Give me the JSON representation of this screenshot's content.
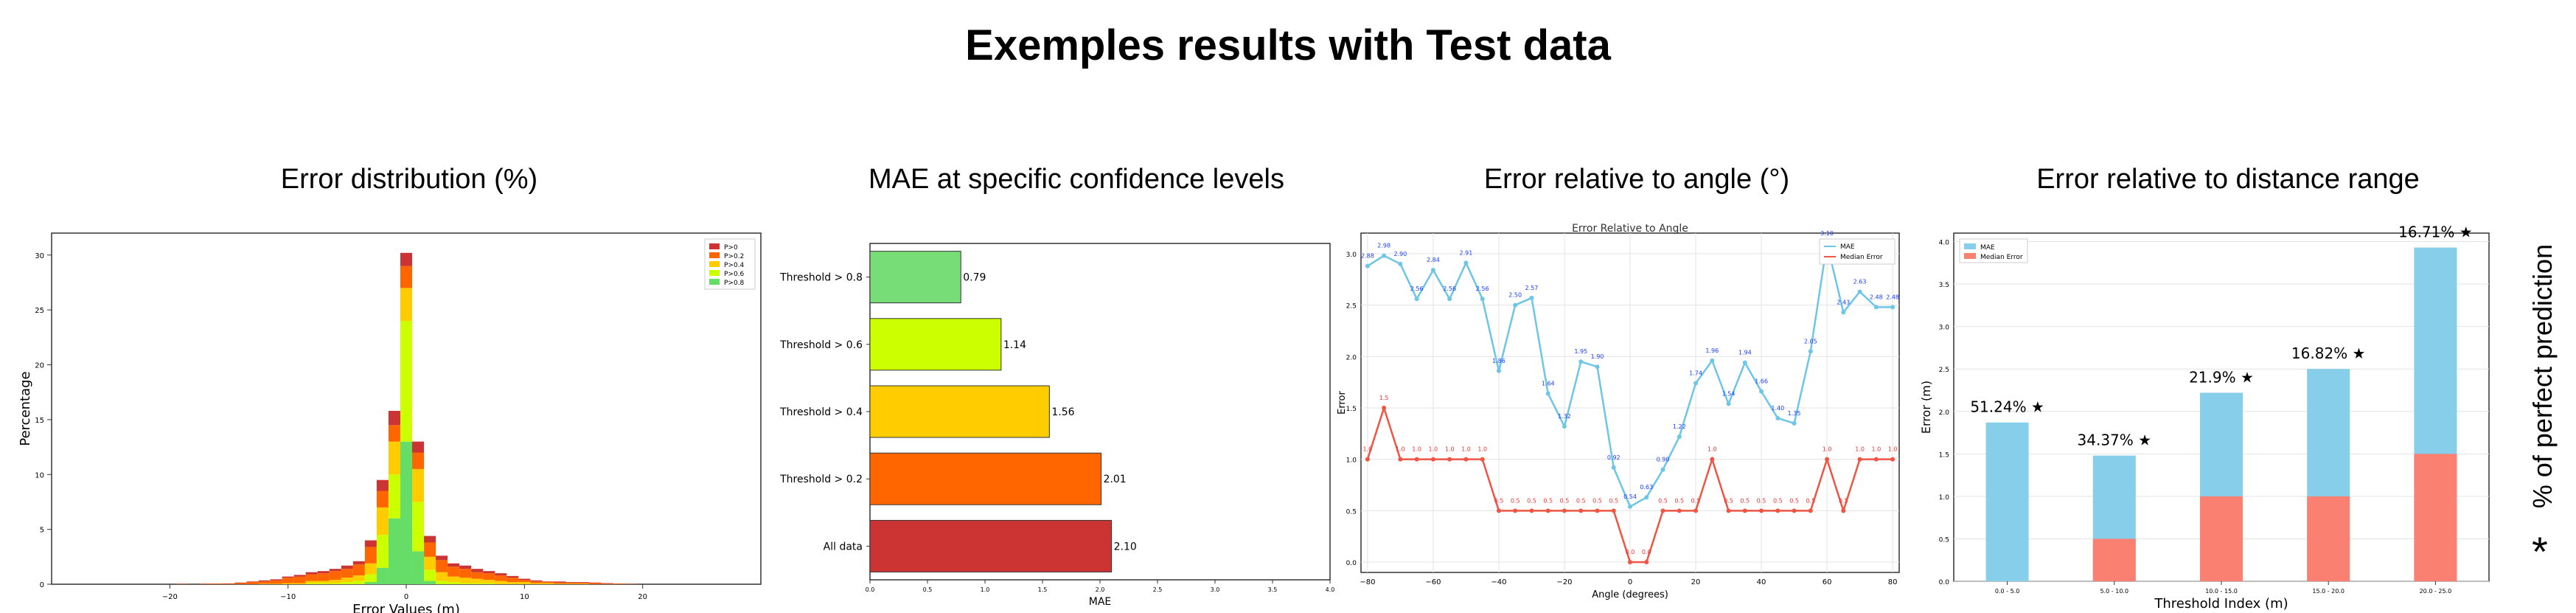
{
  "page": {
    "title": "Exemples results with Test data"
  },
  "panels": [
    {
      "title": "Error distribution (%)"
    },
    {
      "title": "MAE at specific confidence levels"
    },
    {
      "title": "Error relative to angle (°)"
    },
    {
      "title": "Error relative to distance range"
    }
  ],
  "side_label": {
    "text": "% of perfect prediction",
    "star": "*"
  },
  "chart_data": [
    {
      "type": "bar",
      "stacked": true,
      "xlabel": "Error Values (m)",
      "ylabel": "Percentage",
      "xlim": [
        -30,
        30
      ],
      "ylim": [
        0,
        32
      ],
      "xticks": [
        -20,
        -10,
        0,
        10,
        20
      ],
      "yticks": [
        0,
        5,
        10,
        15,
        20,
        25,
        30
      ],
      "bin_width": 1,
      "legend_position": "top-right",
      "bins": [
        -19,
        -17,
        -16,
        -15,
        -14,
        -13,
        -12,
        -11,
        -10,
        -9,
        -8,
        -7,
        -6,
        -5,
        -4,
        -3,
        -2,
        -1,
        0,
        1,
        2,
        3,
        4,
        5,
        6,
        7,
        8,
        9,
        10,
        11,
        12,
        13,
        14,
        15,
        16,
        17,
        18,
        19
      ],
      "series": [
        {
          "name": "P>0.8",
          "color": "#66dd66",
          "values": [
            0,
            0,
            0,
            0,
            0,
            0,
            0,
            0,
            0,
            0,
            0,
            0,
            0,
            0,
            0,
            0.2,
            1.5,
            6,
            13,
            3,
            0.3,
            0,
            0,
            0,
            0,
            0,
            0,
            0,
            0,
            0,
            0,
            0,
            0,
            0,
            0,
            0,
            0,
            0
          ]
        },
        {
          "name": "P>0.6",
          "color": "#ccff00",
          "values": [
            0,
            0,
            0,
            0,
            0,
            0,
            0,
            0,
            0,
            0,
            0.1,
            0.1,
            0.1,
            0.2,
            0.3,
            0.7,
            3,
            4,
            11,
            4.5,
            1,
            0.3,
            0.2,
            0.1,
            0.1,
            0.1,
            0,
            0,
            0,
            0,
            0,
            0,
            0,
            0,
            0,
            0,
            0,
            0
          ]
        },
        {
          "name": "P>0.4",
          "color": "#ffcc00",
          "values": [
            0,
            0,
            0,
            0,
            0,
            0,
            0.05,
            0.05,
            0.1,
            0.1,
            0.2,
            0.2,
            0.3,
            0.4,
            0.5,
            1,
            2.5,
            3,
            3,
            3,
            1.2,
            0.8,
            0.5,
            0.5,
            0.4,
            0.3,
            0.3,
            0.2,
            0.2,
            0.1,
            0.1,
            0.05,
            0.05,
            0.05,
            0,
            0,
            0,
            0
          ]
        },
        {
          "name": "P>0.2",
          "color": "#ff6600",
          "values": [
            0.02,
            0.03,
            0.05,
            0.05,
            0.1,
            0.2,
            0.2,
            0.3,
            0.5,
            0.6,
            0.6,
            0.7,
            0.8,
            0.8,
            1,
            1.5,
            1.5,
            1.5,
            2,
            1.5,
            1.3,
            1.1,
            0.9,
            0.8,
            0.6,
            0.6,
            0.5,
            0.4,
            0.2,
            0.15,
            0.1,
            0.1,
            0.1,
            0.1,
            0.1,
            0.05,
            0.05,
            0.02
          ]
        },
        {
          "name": "P>0",
          "color": "#cc3333",
          "values": [
            0.02,
            0.02,
            0.02,
            0.03,
            0.05,
            0.05,
            0.1,
            0.1,
            0.1,
            0.15,
            0.2,
            0.2,
            0.2,
            0.3,
            0.3,
            0.6,
            1,
            1.3,
            1.2,
            1,
            0.6,
            0.4,
            0.3,
            0.3,
            0.3,
            0.2,
            0.2,
            0.15,
            0.1,
            0.1,
            0.05,
            0.1,
            0.05,
            0.05,
            0.05,
            0.05,
            0.02,
            0.02
          ]
        }
      ]
    },
    {
      "type": "bar",
      "orientation": "horizontal",
      "xlabel": "MAE",
      "xlim": [
        0,
        4
      ],
      "xticks": [
        "0.0",
        "0.5",
        "1.0",
        "1.5",
        "2.0",
        "2.5",
        "3.0",
        "3.5",
        "4.0"
      ],
      "categories": [
        "Threshold > 0.8",
        "Threshold > 0.6",
        "Threshold > 0.4",
        "Threshold > 0.2",
        "All data"
      ],
      "values": [
        0.79,
        1.14,
        1.56,
        2.01,
        2.1
      ],
      "value_labels": [
        "0.79",
        "1.14",
        "1.56",
        "2.01",
        "2.10"
      ],
      "colors": [
        "#77dd77",
        "#ccff00",
        "#ffcc00",
        "#ff6600",
        "#cc3333"
      ]
    },
    {
      "type": "line",
      "title": "Error Relative to Angle",
      "xlabel": "Angle (degrees)",
      "ylabel": "Error",
      "xlim": [
        -82,
        82
      ],
      "ylim": [
        -0.1,
        3.2
      ],
      "xticks": [
        -80,
        -60,
        -40,
        -20,
        0,
        20,
        40,
        60,
        80
      ],
      "yticks": [
        "0.0",
        "0.5",
        "1.0",
        "1.5",
        "2.0",
        "2.5",
        "3.0"
      ],
      "grid": true,
      "legend_position": "top-right",
      "x": [
        -80,
        -75,
        -70,
        -65,
        -60,
        -55,
        -50,
        -45,
        -40,
        -35,
        -30,
        -25,
        -20,
        -15,
        -10,
        -5,
        0,
        5,
        10,
        15,
        20,
        25,
        30,
        35,
        40,
        45,
        50,
        55,
        60,
        65,
        70,
        75,
        80
      ],
      "series": [
        {
          "name": "MAE",
          "color": "#6ec6e6",
          "values": [
            2.88,
            2.98,
            2.9,
            2.56,
            2.84,
            2.56,
            2.91,
            2.56,
            1.86,
            2.5,
            2.57,
            1.64,
            1.32,
            1.95,
            1.9,
            0.92,
            0.54,
            0.63,
            0.9,
            1.22,
            1.74,
            1.96,
            1.54,
            1.94,
            1.66,
            1.4,
            1.35,
            2.05,
            3.1,
            2.43,
            2.63,
            2.48,
            2.48
          ],
          "point_labels": [
            "2.88",
            "2.98",
            "2.90",
            "2.56",
            "2.84",
            "2.56",
            "2.91",
            "2.56",
            "1.86",
            "2.50",
            "2.57",
            "1.64",
            "1.32",
            "1.95",
            "1.90",
            "0.92",
            "0.54",
            "0.63",
            "0.90",
            "1.22",
            "1.74",
            "1.96",
            "1.54",
            "1.94",
            "1.66",
            "1.40",
            "1.35",
            "2.05",
            "3.10",
            "2.43",
            "2.63",
            "2.48",
            "2.48"
          ]
        },
        {
          "name": "Median Error",
          "color": "#ee5544",
          "values": [
            1.0,
            1.5,
            1.0,
            1.0,
            1.0,
            1.0,
            1.0,
            1.0,
            0.5,
            0.5,
            0.5,
            0.5,
            0.5,
            0.5,
            0.5,
            0.5,
            0.0,
            0.0,
            0.5,
            0.5,
            0.5,
            1.0,
            0.5,
            0.5,
            0.5,
            0.5,
            0.5,
            0.5,
            1.0,
            0.5,
            1.0,
            1.0,
            1.0
          ],
          "point_labels": [
            "1.0",
            "1.5",
            "1.0",
            "1.0",
            "1.0",
            "1.0",
            "1.0",
            "1.0",
            "0.5",
            "0.5",
            "0.5",
            "0.5",
            "0.5",
            "0.5",
            "0.5",
            "0.5",
            "0.0",
            "0.0",
            "0.5",
            "0.5",
            "0.5",
            "1.0",
            "0.5",
            "0.5",
            "0.5",
            "0.5",
            "0.5",
            "0.5",
            "1.0",
            "0.5",
            "1.0",
            "1.0",
            "1.0"
          ]
        }
      ]
    },
    {
      "type": "bar",
      "xlabel": "Threshold Index (m)",
      "ylabel": "Error (m)",
      "ylim": [
        0,
        4.1
      ],
      "yticks": [
        "0.0",
        "0.5",
        "1.0",
        "1.5",
        "2.0",
        "2.5",
        "3.0",
        "3.5",
        "4.0"
      ],
      "grid": true,
      "legend_position": "top-left",
      "categories": [
        "0.0 - 5.0",
        "5.0 - 10.0",
        "10.0 - 15.0",
        "15.0 - 20.0",
        "20.0 - 25.0"
      ],
      "series": [
        {
          "name": "MAE",
          "color": "#87ceeb",
          "values": [
            1.87,
            1.48,
            2.22,
            2.5,
            3.93
          ]
        },
        {
          "name": "Median Error",
          "color": "#fa8072",
          "values": [
            0.0,
            0.5,
            1.0,
            1.0,
            1.5
          ]
        }
      ],
      "annotations": [
        "51.24%",
        "34.37%",
        "21.9%",
        "16.82%",
        "16.71%"
      ],
      "annotation_marker": "★"
    }
  ]
}
